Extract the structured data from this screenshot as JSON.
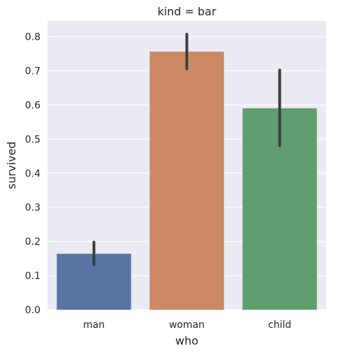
{
  "chart_data": {
    "type": "bar",
    "title": "kind = bar",
    "xlabel": "who",
    "ylabel": "survived",
    "categories": [
      "man",
      "woman",
      "child"
    ],
    "values": [
      0.164,
      0.756,
      0.59
    ],
    "error_bars": [
      [
        0.132,
        0.198
      ],
      [
        0.706,
        0.807
      ],
      [
        0.48,
        0.702
      ]
    ],
    "colors": [
      "#5875a4",
      "#cc8963",
      "#5f9e6e"
    ],
    "error_bar_color": "#3d3d3d",
    "ylim": [
      0.0,
      0.846
    ],
    "yticks": [
      0.0,
      0.1,
      0.2,
      0.3,
      0.4,
      0.5,
      0.6,
      0.7,
      0.8
    ],
    "ytick_labels": [
      "0.0",
      "0.1",
      "0.2",
      "0.3",
      "0.4",
      "0.5",
      "0.6",
      "0.7",
      "0.8"
    ],
    "grid": true,
    "background": "#eaeaf2",
    "grid_color": "#ffffff"
  }
}
